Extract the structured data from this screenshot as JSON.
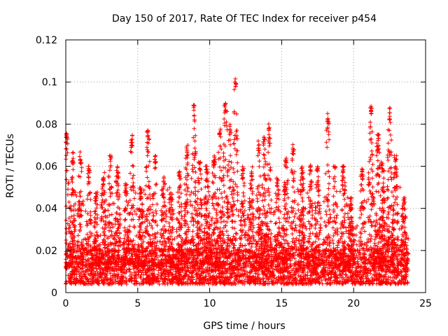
{
  "chart_data": {
    "type": "scatter",
    "title": "Day 150 of 2017, Rate Of TEC Index for receiver p454",
    "xlabel": "GPS time / hours",
    "ylabel": "ROTI / TECUs",
    "xlim": [
      0,
      25
    ],
    "ylim": [
      0,
      0.12
    ],
    "x_ticks": [
      0,
      5,
      10,
      15,
      20,
      25
    ],
    "x_tick_labels": [
      "0",
      "5",
      "10",
      "15",
      "20",
      "25"
    ],
    "y_ticks": [
      0,
      0.02,
      0.04,
      0.06,
      0.08,
      0.1,
      0.12
    ],
    "y_tick_labels": [
      "0",
      "0.02",
      "0.04",
      "0.06",
      "0.08",
      "0.1",
      "0.12"
    ],
    "grid": true,
    "marker": "+",
    "color": "#ff0000",
    "data_x_range": [
      0,
      23.8
    ],
    "baseline_range": [
      0.004,
      0.02
    ],
    "spikes": [
      {
        "x": 0.05,
        "y": 0.077
      },
      {
        "x": 0.5,
        "y": 0.068
      },
      {
        "x": 1.0,
        "y": 0.067
      },
      {
        "x": 1.6,
        "y": 0.06
      },
      {
        "x": 2.1,
        "y": 0.048
      },
      {
        "x": 2.6,
        "y": 0.057
      },
      {
        "x": 3.1,
        "y": 0.065
      },
      {
        "x": 3.6,
        "y": 0.06
      },
      {
        "x": 4.2,
        "y": 0.052
      },
      {
        "x": 4.6,
        "y": 0.075
      },
      {
        "x": 5.2,
        "y": 0.05
      },
      {
        "x": 5.7,
        "y": 0.079
      },
      {
        "x": 6.2,
        "y": 0.065
      },
      {
        "x": 6.8,
        "y": 0.055
      },
      {
        "x": 7.3,
        "y": 0.05
      },
      {
        "x": 7.9,
        "y": 0.058
      },
      {
        "x": 8.4,
        "y": 0.07
      },
      {
        "x": 8.9,
        "y": 0.089
      },
      {
        "x": 9.3,
        "y": 0.062
      },
      {
        "x": 9.8,
        "y": 0.06
      },
      {
        "x": 10.3,
        "y": 0.065
      },
      {
        "x": 10.7,
        "y": 0.078
      },
      {
        "x": 11.1,
        "y": 0.091
      },
      {
        "x": 11.4,
        "y": 0.08
      },
      {
        "x": 11.8,
        "y": 0.103
      },
      {
        "x": 12.3,
        "y": 0.06
      },
      {
        "x": 12.9,
        "y": 0.06
      },
      {
        "x": 13.4,
        "y": 0.072
      },
      {
        "x": 13.8,
        "y": 0.075
      },
      {
        "x": 14.1,
        "y": 0.081
      },
      {
        "x": 14.7,
        "y": 0.055
      },
      {
        "x": 15.3,
        "y": 0.065
      },
      {
        "x": 15.8,
        "y": 0.071
      },
      {
        "x": 16.4,
        "y": 0.06
      },
      {
        "x": 17.0,
        "y": 0.063
      },
      {
        "x": 17.5,
        "y": 0.06
      },
      {
        "x": 18.2,
        "y": 0.085
      },
      {
        "x": 18.7,
        "y": 0.062
      },
      {
        "x": 19.3,
        "y": 0.06
      },
      {
        "x": 19.8,
        "y": 0.045
      },
      {
        "x": 20.6,
        "y": 0.06
      },
      {
        "x": 21.2,
        "y": 0.089
      },
      {
        "x": 21.7,
        "y": 0.075
      },
      {
        "x": 22.0,
        "y": 0.062
      },
      {
        "x": 22.5,
        "y": 0.088
      },
      {
        "x": 22.9,
        "y": 0.065
      },
      {
        "x": 23.5,
        "y": 0.045
      }
    ]
  }
}
